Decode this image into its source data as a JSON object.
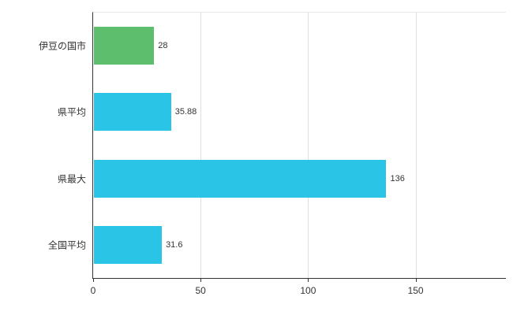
{
  "chart_data": {
    "type": "bar",
    "orientation": "horizontal",
    "title": "",
    "xlabel": "",
    "ylabel": "",
    "categories": [
      "伊豆の国市",
      "県平均",
      "県最大",
      "全国平均"
    ],
    "values": [
      28,
      35.88,
      136,
      31.6
    ],
    "value_labels": [
      "28",
      "35.88",
      "136",
      "31.6"
    ],
    "bar_colors": [
      "#5dbe6e",
      "#29c4e6",
      "#29c4e6",
      "#29c4e6"
    ],
    "ticks": [
      0,
      50,
      100,
      150
    ],
    "tick_labels": [
      "0",
      "50",
      "100",
      "150"
    ],
    "xlim": [
      0,
      192
    ],
    "grid": "vertical",
    "legend": "none",
    "colors": {
      "grid": "#e0e0e0",
      "axis": "#333333",
      "text": "#333333",
      "background": "#ffffff"
    }
  }
}
